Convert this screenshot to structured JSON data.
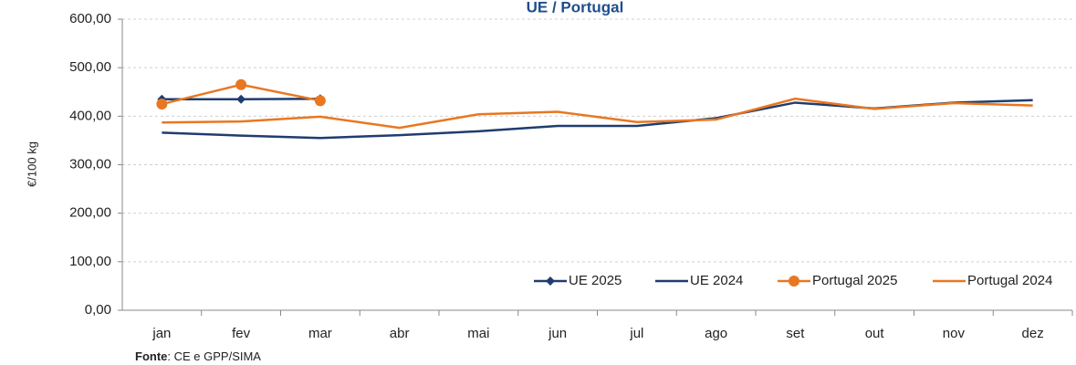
{
  "chart_data": {
    "type": "line",
    "title": "UE / Portugal",
    "y_label": "€/100 kg",
    "source": {
      "label": "Fonte",
      "text": ": CE e GPP/SIMA"
    },
    "categories": [
      "jan",
      "fev",
      "mar",
      "abr",
      "mai",
      "jun",
      "jul",
      "ago",
      "set",
      "out",
      "nov",
      "dez"
    ],
    "series": [
      {
        "name": "UE 2025",
        "color": "#1f3d6e",
        "marker": "diamond",
        "values": [
          435,
          435,
          436,
          null,
          null,
          null,
          null,
          null,
          null,
          null,
          null,
          null
        ]
      },
      {
        "name": "UE 2024",
        "color": "#1f3d6e",
        "marker": null,
        "values": [
          366,
          360,
          355,
          361,
          369,
          380,
          380,
          396,
          428,
          416,
          428,
          433
        ]
      },
      {
        "name": "Portugal 2025",
        "color": "#e87722",
        "marker": "circle",
        "values": [
          425,
          465,
          432,
          null,
          null,
          null,
          null,
          null,
          null,
          null,
          null,
          null
        ]
      },
      {
        "name": "Portugal 2024",
        "color": "#e87722",
        "marker": null,
        "values": [
          387,
          389,
          399,
          376,
          404,
          409,
          388,
          393,
          436,
          415,
          427,
          422
        ]
      }
    ],
    "ylim": [
      0,
      600
    ],
    "yticks": [
      {
        "value": 0,
        "label": "0,00"
      },
      {
        "value": 100,
        "label": "100,00"
      },
      {
        "value": 200,
        "label": "200,00"
      },
      {
        "value": 300,
        "label": "300,00"
      },
      {
        "value": 400,
        "label": "400,00"
      },
      {
        "value": 500,
        "label": "500,00"
      },
      {
        "value": 600,
        "label": "600,00"
      }
    ],
    "grid": true,
    "legend": "bottom-right"
  }
}
